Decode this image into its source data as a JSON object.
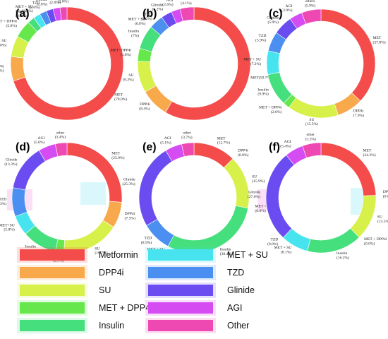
{
  "legend": [
    {
      "key": "met",
      "label": "Metformin",
      "color": "#f44b4b"
    },
    {
      "key": "dpp4",
      "label": "DPP4i",
      "color": "#f7a94b"
    },
    {
      "key": "su",
      "label": "SU",
      "color": "#d8f04a"
    },
    {
      "key": "metdpp",
      "label": "MET + DPP4i",
      "color": "#66e84d"
    },
    {
      "key": "ins",
      "label": "Insulin",
      "color": "#45df7d"
    },
    {
      "key": "metsu",
      "label": "MET + SU",
      "color": "#47e4ef"
    },
    {
      "key": "tzd",
      "label": "TZD",
      "color": "#4b8ff0"
    },
    {
      "key": "gli",
      "label": "Glinide",
      "color": "#6a4cf0"
    },
    {
      "key": "agi",
      "label": "AGI",
      "color": "#d54cf2"
    },
    {
      "key": "oth",
      "label": "Other",
      "color": "#ee49b3"
    }
  ],
  "chart_data": [
    {
      "type": "pie",
      "panel": "(a)",
      "slices": [
        {
          "key": "met",
          "name": "MET",
          "value": 70.0,
          "label": "MET\n(70.0%)"
        },
        {
          "key": "dpp4",
          "name": "DPP4i",
          "value": 7.0,
          "label": "DPP4i\n(7.0%)"
        },
        {
          "key": "su",
          "name": "SU",
          "value": 6.0,
          "label": "SU\n(6.0%)"
        },
        {
          "key": "metdpp",
          "name": "MET + DPP4i",
          "value": 5.0,
          "label": "MET + DPP4i\n(5.0%)"
        },
        {
          "key": "ins",
          "name": "Insulin",
          "value": 2.0,
          "label": "Insulin\n(2.0%)"
        },
        {
          "key": "metsu",
          "name": "MET + SU",
          "value": 2.0,
          "label": "MET + SU\n(2.0%)"
        },
        {
          "key": "tzd",
          "name": "TZD",
          "value": 2.0,
          "label": "TZD\n(2.0%)"
        },
        {
          "key": "gli",
          "name": "Glinide",
          "value": 2.0,
          "label": "Glinide\n(2.0%)"
        },
        {
          "key": "agi",
          "name": "AGI",
          "value": 2.0,
          "label": "AGI\n(2.0%)"
        },
        {
          "key": "oth",
          "name": "other",
          "value": 2.0,
          "label": "other\n(2.0%)"
        }
      ]
    },
    {
      "type": "pie",
      "panel": "(b)",
      "slices": [
        {
          "key": "met",
          "name": "MET",
          "value": 59.7,
          "label": "MET(59.7%)"
        },
        {
          "key": "dpp4",
          "name": "DPP4i",
          "value": 8.4,
          "label": "DPP4i\n(8.4%)"
        },
        {
          "key": "su",
          "name": "SU",
          "value": 9.2,
          "label": "SU\n(9.2%)"
        },
        {
          "key": "metdpp",
          "name": "MET+DPP4i",
          "value": 3.8,
          "label": "MET+DPP4i\n(3.8%)"
        },
        {
          "key": "ins",
          "name": "Insulin",
          "value": 7.0,
          "label": "Insulin\n(7%)"
        },
        {
          "key": "metsu",
          "name": "MET + SU",
          "value": 0.0,
          "label": "MET + SU\n(0.0%)"
        },
        {
          "key": "tzd",
          "name": "TZD",
          "value": 4.2,
          "label": "TZD\n(4.2%)"
        },
        {
          "key": "gli",
          "name": "Glinide",
          "value": 3.2,
          "label": "Glinide\n(3.2%)"
        },
        {
          "key": "agi",
          "name": "AGI",
          "value": 2.6,
          "label": "AGI\n(2.6%)"
        },
        {
          "key": "oth",
          "name": "other",
          "value": 4.1,
          "label": "other\n(4.1%)"
        }
      ]
    },
    {
      "type": "pie",
      "panel": "(c)",
      "slices": [
        {
          "key": "met",
          "name": "MET",
          "value": 37.8,
          "label": "MET\n(37.8%)"
        },
        {
          "key": "dpp4",
          "name": "DPP4i",
          "value": 7.9,
          "label": "DPP4i\n(7.9%)"
        },
        {
          "key": "su",
          "name": "SU",
          "value": 15.5,
          "label": "SU\n(15.5%)"
        },
        {
          "key": "metdpp",
          "name": "MET + DPP4i",
          "value": 2.0,
          "label": "MET + DPP4i\n(2.0%)"
        },
        {
          "key": "ins",
          "name": "Insulin",
          "value": 9.9,
          "label": "Insulin\n(9.9%)"
        },
        {
          "key": "metsu",
          "name": "MET + SU",
          "value": 7.2,
          "label": "MET + SU\n(7.2%)"
        },
        {
          "key": "tzd",
          "name": "TZD",
          "value": 5.9,
          "label": "TZD\n(5.9%)"
        },
        {
          "key": "gli",
          "name": "Glinide",
          "value": 5.9,
          "label": "Glinide\n(5.9%)"
        },
        {
          "key": "agi",
          "name": "AGI",
          "value": 3.9,
          "label": "AGI\n(3.9%)"
        },
        {
          "key": "oth",
          "name": "others",
          "value": 5.9,
          "label": "others\n(5.9%)"
        }
      ]
    },
    {
      "type": "pie",
      "panel": "(d)",
      "slices": [
        {
          "key": "met",
          "name": "MET",
          "value": 25.9,
          "label": "MET\n(25.9%)"
        },
        {
          "key": "dpp4",
          "name": "DPP4i",
          "value": 7.5,
          "label": "DPP4i\n(7.5%)"
        },
        {
          "key": "su",
          "name": "SU",
          "value": 16.7,
          "label": "SU\n(16.7%)"
        },
        {
          "key": "metdpp",
          "name": "MET + DPP4",
          "value": 2.5,
          "label": "MET + DPP4\n(2.5%)"
        },
        {
          "key": "ins",
          "name": "Insulin",
          "value": 10.0,
          "label": "Insulin\n(10.0%)"
        },
        {
          "key": "metsu",
          "name": "MET+SU",
          "value": 5.8,
          "label": "MET+SU\n(5.8%)"
        },
        {
          "key": "tzd",
          "name": "TZD",
          "value": 8.3,
          "label": "TZD\n(8.3%)"
        },
        {
          "key": "gli",
          "name": "Glinide",
          "value": 13.3,
          "label": "Glinide\n(13.3%)"
        },
        {
          "key": "agi",
          "name": "AGI",
          "value": 5.0,
          "label": "AGI\n(5.0%)"
        },
        {
          "key": "oth",
          "name": "other",
          "value": 3.4,
          "label": "other\n(3.4%)"
        }
      ]
    },
    {
      "type": "pie",
      "panel": "(e)",
      "slices": [
        {
          "key": "met",
          "name": "MET",
          "value": 12.7,
          "label": "MET\n(12.7%)"
        },
        {
          "key": "dpp4",
          "name": "DPP4i",
          "value": 0.0,
          "label": "DPP4i\n(0.0%)"
        },
        {
          "key": "su",
          "name": "SU",
          "value": 15.9,
          "label": "SU\n(15.9%)"
        },
        {
          "key": "metdpp",
          "name": "MET + DPP4i",
          "value": 0.0,
          "label": "MET + DPP4i\n(0.0%)"
        },
        {
          "key": "ins",
          "name": "Insulin",
          "value": 30.4,
          "label": "Insulin\n(30.4%)"
        },
        {
          "key": "metsu",
          "name": "MET + SU",
          "value": 0.0,
          "label": "MET + SU\n(0.0%)"
        },
        {
          "key": "tzd",
          "name": "TZD",
          "value": 8.9,
          "label": "TZD\n(8.9%)"
        },
        {
          "key": "gli",
          "name": "Glinide",
          "value": 25.3,
          "label": "Glinide\n(25.3%)"
        },
        {
          "key": "agi",
          "name": "AGI",
          "value": 5.1,
          "label": "AGI\n(5.1%)"
        },
        {
          "key": "oth",
          "name": "other",
          "value": 3.7,
          "label": "other\n(3.7%)"
        }
      ]
    },
    {
      "type": "pie",
      "panel": "(f)",
      "slices": [
        {
          "key": "met",
          "name": "MET",
          "value": 24.3,
          "label": "MET\n(24.3%)"
        },
        {
          "key": "dpp4",
          "name": "DPP4i",
          "value": 0.0,
          "label": "DPP4i\n(0.0%)"
        },
        {
          "key": "su",
          "name": "SU",
          "value": 13.5,
          "label": "SU\n(13.5%)"
        },
        {
          "key": "metdpp",
          "name": "MET + DPP4i",
          "value": 0.0,
          "label": "MET + DPP4i\n(0.0%)"
        },
        {
          "key": "ins",
          "name": "Insulin",
          "value": 16.2,
          "label": "Insulin\n(16.2%)"
        },
        {
          "key": "metsu",
          "name": "MET + SU",
          "value": 8.1,
          "label": "MET + SU\n(8.1%)"
        },
        {
          "key": "tzd",
          "name": "TZD",
          "value": 0.0,
          "label": "TZD\n(0.0%)"
        },
        {
          "key": "gli",
          "name": "Glinide",
          "value": 27.0,
          "label": "Glinide\n(27.0%)"
        },
        {
          "key": "agi",
          "name": "AGI",
          "value": 5.4,
          "label": "AGI\n(5.4%)"
        },
        {
          "key": "oth",
          "name": "other",
          "value": 5.5,
          "label": "other\n(5.5%)"
        }
      ]
    }
  ]
}
